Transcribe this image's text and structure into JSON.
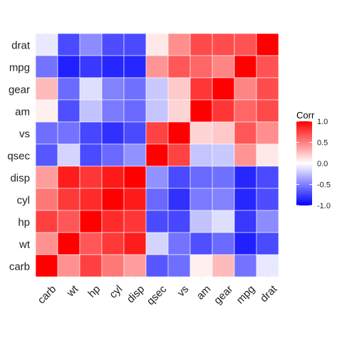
{
  "chart_data": {
    "type": "heatmap",
    "title": "",
    "xlabel": "",
    "ylabel": "",
    "variables_x": [
      "carb",
      "wt",
      "hp",
      "cyl",
      "disp",
      "qsec",
      "vs",
      "am",
      "gear",
      "mpg",
      "drat"
    ],
    "variables_y_top_to_bottom": [
      "drat",
      "mpg",
      "gear",
      "am",
      "vs",
      "qsec",
      "disp",
      "cyl",
      "hp",
      "wt",
      "carb"
    ],
    "matrix": {
      "carb": {
        "carb": 1.0,
        "wt": 0.43,
        "hp": 0.75,
        "cyl": 0.53,
        "disp": 0.39,
        "qsec": -0.66,
        "vs": -0.57,
        "am": 0.06,
        "gear": 0.27,
        "mpg": -0.55,
        "drat": -0.09
      },
      "wt": {
        "carb": 0.43,
        "wt": 1.0,
        "hp": 0.66,
        "cyl": 0.78,
        "disp": 0.89,
        "qsec": -0.17,
        "vs": -0.55,
        "am": -0.69,
        "gear": -0.58,
        "mpg": -0.87,
        "drat": -0.71
      },
      "hp": {
        "carb": 0.75,
        "wt": 0.66,
        "hp": 1.0,
        "cyl": 0.83,
        "disp": 0.79,
        "qsec": -0.71,
        "vs": -0.72,
        "am": -0.24,
        "gear": -0.13,
        "mpg": -0.78,
        "drat": -0.45
      },
      "cyl": {
        "carb": 0.53,
        "wt": 0.78,
        "hp": 0.83,
        "cyl": 1.0,
        "disp": 0.9,
        "qsec": -0.59,
        "vs": -0.81,
        "am": -0.52,
        "gear": -0.49,
        "mpg": -0.85,
        "drat": -0.7
      },
      "disp": {
        "carb": 0.39,
        "wt": 0.89,
        "hp": 0.79,
        "cyl": 0.9,
        "disp": 1.0,
        "qsec": -0.43,
        "vs": -0.71,
        "am": -0.59,
        "gear": -0.56,
        "mpg": -0.85,
        "drat": -0.71
      },
      "qsec": {
        "carb": -0.66,
        "wt": -0.17,
        "hp": -0.71,
        "cyl": -0.59,
        "disp": -0.43,
        "qsec": 1.0,
        "vs": 0.74,
        "am": -0.23,
        "gear": -0.21,
        "mpg": 0.42,
        "drat": 0.09
      },
      "vs": {
        "carb": -0.57,
        "wt": -0.55,
        "hp": -0.72,
        "cyl": -0.81,
        "disp": -0.71,
        "qsec": 0.74,
        "vs": 1.0,
        "am": 0.17,
        "gear": 0.21,
        "mpg": 0.66,
        "drat": 0.44
      },
      "am": {
        "carb": 0.06,
        "wt": -0.69,
        "hp": -0.24,
        "cyl": -0.52,
        "disp": -0.59,
        "qsec": -0.23,
        "vs": 0.17,
        "am": 1.0,
        "gear": 0.79,
        "mpg": 0.6,
        "drat": 0.71
      },
      "gear": {
        "carb": 0.27,
        "wt": -0.58,
        "hp": -0.13,
        "cyl": -0.49,
        "disp": -0.56,
        "qsec": -0.21,
        "vs": 0.21,
        "am": 0.79,
        "gear": 1.0,
        "mpg": 0.48,
        "drat": 0.7
      },
      "mpg": {
        "carb": -0.55,
        "wt": -0.87,
        "hp": -0.78,
        "cyl": -0.85,
        "disp": -0.85,
        "qsec": 0.42,
        "vs": 0.66,
        "am": 0.6,
        "gear": 0.48,
        "mpg": 1.0,
        "drat": 0.68
      },
      "drat": {
        "carb": -0.09,
        "wt": -0.71,
        "hp": -0.45,
        "cyl": -0.7,
        "disp": -0.71,
        "qsec": 0.09,
        "vs": 0.44,
        "am": 0.71,
        "gear": 0.7,
        "mpg": 0.68,
        "drat": 1.0
      }
    },
    "legend": {
      "title": "Corr",
      "ticks": [
        1.0,
        0.5,
        0.0,
        -0.5,
        -1.0
      ],
      "tick_labels": [
        "1.0",
        "0.5",
        "0.0",
        "-0.5",
        "-1.0"
      ],
      "placement": "right"
    },
    "color_scale": {
      "low": "#0000FF",
      "mid": "#FFFFFF",
      "high": "#FF0000",
      "limits": [
        -1,
        1
      ]
    },
    "grid": false
  }
}
